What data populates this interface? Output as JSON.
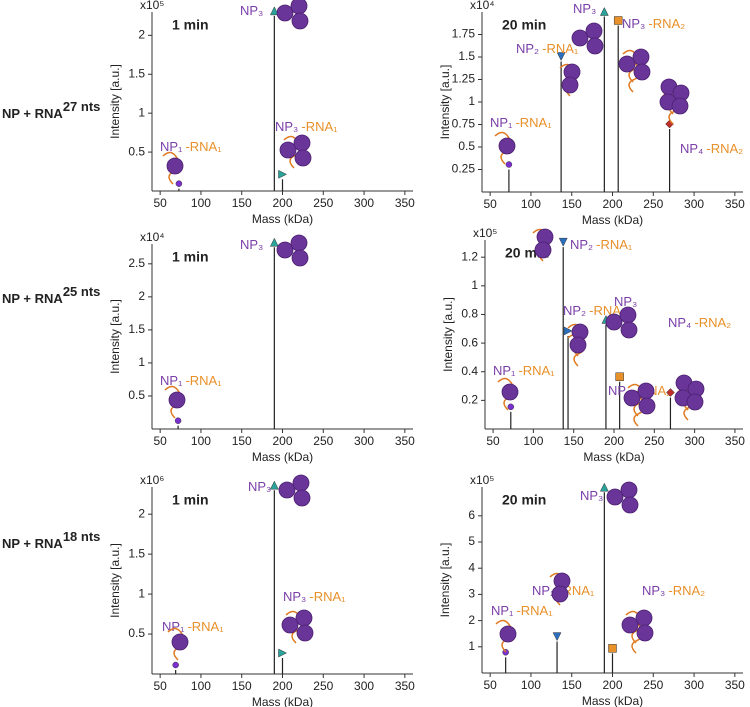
{
  "rows": [
    {
      "label": "NP + RNA",
      "sup": "27 nts"
    },
    {
      "label": "NP + RNA",
      "sup": "25 nts"
    },
    {
      "label": "NP + RNA",
      "sup": "18 nts"
    }
  ],
  "chart_data": [
    {
      "type": "stem",
      "title": "1 min",
      "multiplier": "x10⁵",
      "xlabel": "Mass (kDa)",
      "ylabel": "Intensity [a.u.]",
      "xlim": [
        40,
        360
      ],
      "xticks": [
        50,
        100,
        150,
        200,
        250,
        300,
        350
      ],
      "ylim": [
        0,
        2.3
      ],
      "yticks": [
        0.5,
        1.0,
        1.5,
        2.0
      ],
      "x": [
        73,
        190,
        200
      ],
      "values": [
        0.03,
        2.25,
        0.15
      ],
      "labels": [
        {
          "np": "NP₁",
          "rna": "-RNA₁"
        },
        {
          "np": "NP₃"
        },
        {
          "np": "NP₃",
          "rna": "-RNA₁"
        }
      ],
      "markers": [
        "circle",
        "triangle-up",
        "triangle-right"
      ],
      "marker_colors": [
        "#7a2fd0",
        "#2aa39a",
        "#2aa39a"
      ]
    },
    {
      "type": "stem",
      "title": "20 min",
      "multiplier": "x10⁴",
      "xlabel": "Mass (kDa)",
      "ylabel": "Intensity [a.u.]",
      "xlim": [
        40,
        360
      ],
      "xticks": [
        50,
        100,
        150,
        200,
        250,
        300,
        350
      ],
      "ylim": [
        0,
        2.0
      ],
      "yticks": [
        0.25,
        0.5,
        0.75,
        1.0,
        1.25,
        1.5,
        1.75
      ],
      "x": [
        73,
        137,
        190,
        207,
        270
      ],
      "values": [
        0.25,
        1.45,
        1.95,
        1.85,
        0.7
      ],
      "labels": [
        {
          "np": "NP₁",
          "rna": "-RNA₁"
        },
        {
          "np": "NP₂",
          "rna": "-RNA₁"
        },
        {
          "np": "NP₃"
        },
        {
          "np": "NP₃",
          "rna": "-RNA₂"
        },
        {
          "np": "NP₄",
          "rna": "-RNA₂"
        }
      ],
      "markers": [
        "circle",
        "triangle-down",
        "triangle-up",
        "square",
        "diamond"
      ],
      "marker_colors": [
        "#7a2fd0",
        "#2a6fc0",
        "#2aa39a",
        "#e8902a",
        "#c0302a"
      ]
    },
    {
      "type": "stem",
      "title": "1 min",
      "multiplier": "x10⁴",
      "xlabel": "Mass (kDa)",
      "ylabel": "Intensity [a.u.]",
      "xlim": [
        40,
        360
      ],
      "xticks": [
        50,
        100,
        150,
        200,
        250,
        300,
        350
      ],
      "ylim": [
        0,
        2.8
      ],
      "yticks": [
        0.5,
        1.0,
        1.5,
        2.0,
        2.5
      ],
      "x": [
        72,
        190
      ],
      "values": [
        0.05,
        2.75
      ],
      "labels": [
        {
          "np": "NP₁",
          "rna": "-RNA₁"
        },
        {
          "np": "NP₃"
        }
      ],
      "markers": [
        "circle",
        "triangle-up"
      ],
      "marker_colors": [
        "#7a2fd0",
        "#2aa39a"
      ]
    },
    {
      "type": "stem",
      "title": "20 min",
      "multiplier": "x10⁵",
      "xlabel": "Mass (kDa)",
      "ylabel": "Intensity [a.u.]",
      "xlim": [
        40,
        360
      ],
      "xticks": [
        50,
        100,
        150,
        200,
        250,
        300,
        350
      ],
      "ylim": [
        0,
        1.32
      ],
      "yticks": [
        0.2,
        0.4,
        0.6,
        0.8,
        1.0,
        1.2
      ],
      "x": [
        72,
        137,
        143,
        190,
        207,
        270
      ],
      "values": [
        0.12,
        1.27,
        0.65,
        0.73,
        0.33,
        0.22
      ],
      "labels": [
        {
          "np": "NP₁",
          "rna": "-RNA₁"
        },
        {
          "np": "NP₂",
          "rna": "-RNA₁"
        },
        {
          "np": "NP₂",
          "rna": "-RNA₂"
        },
        {
          "np": "NP₃"
        },
        {
          "np": "NP₃",
          "rna": "-RNA₂"
        },
        {
          "np": "NP₄",
          "rna": "-RNA₂"
        }
      ],
      "markers": [
        "circle",
        "triangle-down",
        "triangle-right",
        "triangle-up",
        "square",
        "diamond"
      ],
      "marker_colors": [
        "#7a2fd0",
        "#2a6fc0",
        "#2a6fc0",
        "#2aa39a",
        "#e8902a",
        "#c0302a"
      ]
    },
    {
      "type": "stem",
      "title": "1 min",
      "multiplier": "x10⁶",
      "xlabel": "Mass (kDa)",
      "ylabel": "Intensity [a.u.]",
      "xlim": [
        40,
        360
      ],
      "xticks": [
        50,
        100,
        150,
        200,
        250,
        300,
        350
      ],
      "ylim": [
        0,
        2.34
      ],
      "yticks": [
        0.5,
        1.0,
        1.5,
        2.0
      ],
      "x": [
        69,
        190,
        200
      ],
      "values": [
        0.05,
        2.3,
        0.2
      ],
      "labels": [
        {
          "np": "NP₁",
          "rna": "-RNA₁"
        },
        {
          "np": "NP₃"
        },
        {
          "np": "NP₃",
          "rna": "-RNA₁"
        }
      ],
      "markers": [
        "circle",
        "triangle-up",
        "triangle-right"
      ],
      "marker_colors": [
        "#7a2fd0",
        "#2aa39a",
        "#2aa39a"
      ]
    },
    {
      "type": "stem",
      "title": "20 min",
      "multiplier": "x10⁵",
      "xlabel": "Mass (kDa)",
      "ylabel": "Intensity [a.u.]",
      "xlim": [
        40,
        360
      ],
      "xticks": [
        50,
        100,
        150,
        200,
        250,
        300,
        350
      ],
      "ylim": [
        0,
        7.1
      ],
      "yticks": [
        1.0,
        2.0,
        3.0,
        4.0,
        5.0,
        6.0
      ],
      "x": [
        69,
        132,
        190,
        200
      ],
      "values": [
        0.6,
        1.2,
        6.9,
        0.75
      ],
      "labels": [
        {
          "np": "NP₁",
          "rna": "-RNA₁"
        },
        {
          "np": "NP₂",
          "rna": "-RNA₁"
        },
        {
          "np": "NP₃"
        },
        {
          "np": "NP₃",
          "rna": "-RNA₂"
        }
      ],
      "markers": [
        "circle",
        "triangle-down",
        "triangle-up",
        "square"
      ],
      "marker_colors": [
        "#7a2fd0",
        "#2a6fc0",
        "#2aa39a",
        "#e8902a"
      ]
    }
  ]
}
